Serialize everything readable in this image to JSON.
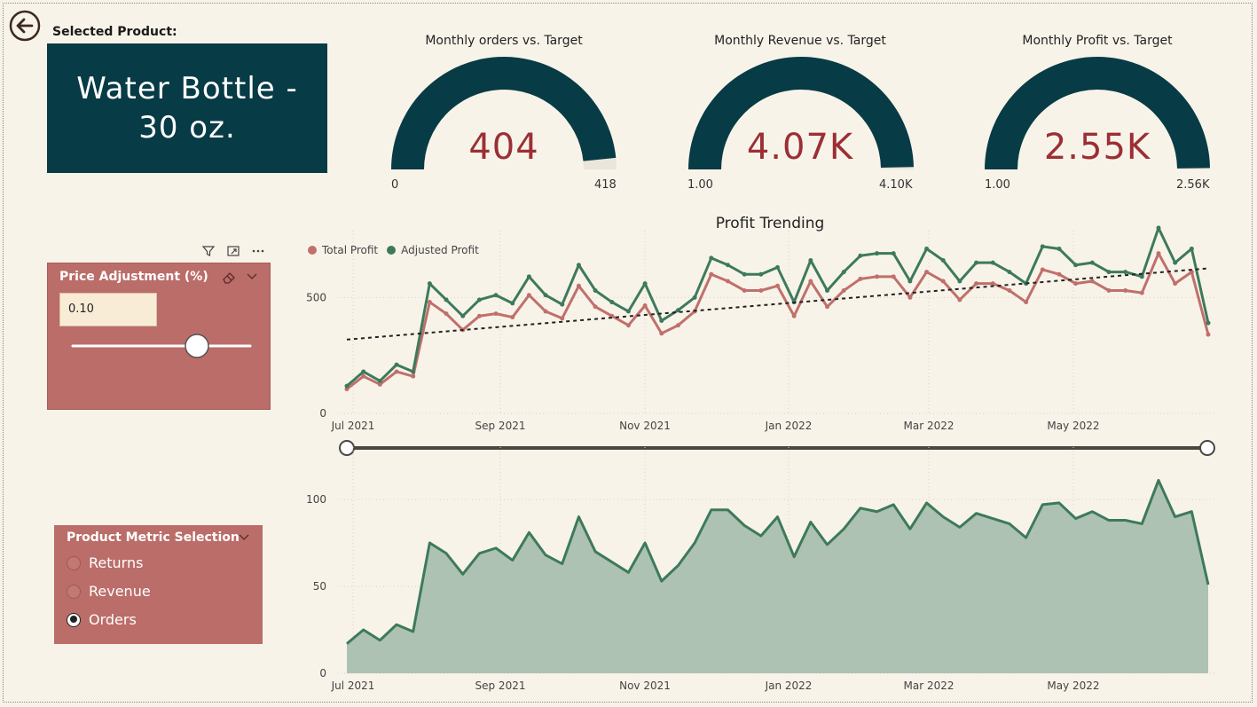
{
  "selected_product": {
    "label": "Selected Product:",
    "line1": "Water Bottle -",
    "line2": "30 oz."
  },
  "gauges": [
    {
      "title": "Monthly orders vs. Target",
      "value": "404",
      "min": "0",
      "max": "418",
      "fill_fraction": 0.967
    },
    {
      "title": "Monthly Revenue vs. Target",
      "value": "4.07K",
      "min": "1.00",
      "max": "4.10K",
      "fill_fraction": 0.993
    },
    {
      "title": "Monthly Profit vs. Target",
      "value": "2.55K",
      "min": "1.00",
      "max": "2.56K",
      "fill_fraction": 0.996
    }
  ],
  "price_slicer": {
    "title": "Price Adjustment (%)",
    "value": "0.10",
    "slider_fraction": 0.67
  },
  "metric_slicer": {
    "title": "Product Metric Selection",
    "options": [
      "Returns",
      "Revenue",
      "Orders"
    ],
    "selected": "Orders"
  },
  "colors": {
    "accent_dark": "#073b45",
    "total_profit": "#c0706b",
    "adjusted_profit": "#3d7a5c",
    "kpi_value": "#9b2f35",
    "slicer_bg": "#bb6d69"
  },
  "chart_data": [
    {
      "type": "line",
      "title": "Profit Trending",
      "x_tick_labels": [
        "Jul 2021",
        "Sep 2021",
        "Nov 2021",
        "Jan 2022",
        "Mar 2022",
        "May 2022"
      ],
      "y_tick_labels": [
        "0",
        "500"
      ],
      "ylim": [
        0,
        750
      ],
      "grid": true,
      "legend": "top-left",
      "trendline": true,
      "series": [
        {
          "name": "Total Profit",
          "values": [
            105,
            160,
            125,
            180,
            160,
            480,
            430,
            360,
            420,
            430,
            415,
            510,
            440,
            410,
            550,
            460,
            420,
            380,
            465,
            345,
            380,
            440,
            600,
            570,
            530,
            530,
            550,
            420,
            570,
            460,
            530,
            580,
            590,
            590,
            500,
            610,
            570,
            490,
            560,
            560,
            530,
            480,
            620,
            600,
            560,
            570,
            530,
            530,
            520,
            690,
            560,
            610,
            340
          ]
        },
        {
          "name": "Adjusted Profit",
          "values": [
            118,
            180,
            140,
            210,
            180,
            560,
            490,
            420,
            490,
            510,
            475,
            590,
            510,
            470,
            640,
            530,
            480,
            440,
            560,
            400,
            445,
            500,
            670,
            640,
            600,
            600,
            630,
            480,
            660,
            530,
            610,
            680,
            690,
            690,
            570,
            710,
            660,
            570,
            650,
            650,
            610,
            560,
            720,
            710,
            640,
            650,
            610,
            610,
            590,
            800,
            650,
            710,
            390
          ]
        }
      ]
    },
    {
      "type": "area",
      "x_tick_labels": [
        "Jul 2021",
        "Sep 2021",
        "Nov 2021",
        "Jan 2022",
        "Mar 2022",
        "May 2022"
      ],
      "y_tick_labels": [
        "0",
        "50",
        "100"
      ],
      "ylim": [
        0,
        125
      ],
      "grid": true,
      "series": [
        {
          "name": "",
          "values": [
            17,
            25,
            19,
            28,
            24,
            75,
            69,
            57,
            69,
            72,
            65,
            81,
            68,
            63,
            90,
            70,
            64,
            58,
            75,
            53,
            62,
            75,
            94,
            94,
            85,
            79,
            90,
            67,
            87,
            74,
            83,
            95,
            93,
            97,
            83,
            98,
            90,
            84,
            92,
            89,
            86,
            78,
            97,
            98,
            89,
            93,
            88,
            88,
            86,
            111,
            90,
            93,
            51
          ]
        }
      ]
    }
  ]
}
